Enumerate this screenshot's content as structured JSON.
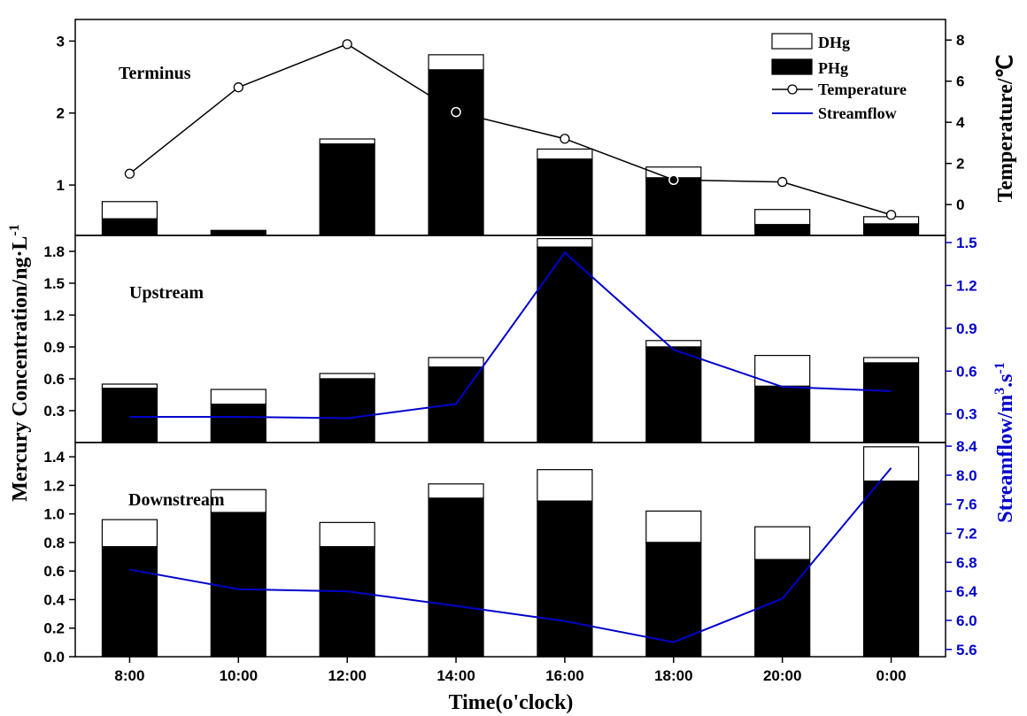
{
  "chart_data": {
    "type": "bar",
    "categories": [
      "8:00",
      "10:00",
      "12:00",
      "14:00",
      "16:00",
      "18:00",
      "20:00",
      "0:00"
    ],
    "xlabel": "Time(o'clock)",
    "ylabel_left": "Mercury Concentration/ng·L",
    "ylabel_left_sup": "-1",
    "legend": {
      "dhg": "DHg",
      "phg": "PHg",
      "temperature": "Temperature",
      "streamflow": "Streamflow",
      "position": "top-right"
    },
    "colors": {
      "phg": "#000000",
      "dhg": "#ffffff",
      "temperature": "#000000",
      "streamflow": "#0000cc",
      "axis": "#000000"
    },
    "panels": [
      {
        "label": "Terminus",
        "ylim": [
          0.3,
          3.3
        ],
        "yticks": [
          1,
          2,
          3
        ],
        "phg": [
          0.53,
          0.37,
          1.57,
          2.6,
          1.36,
          1.1,
          0.45,
          0.46
        ],
        "total": [
          0.77,
          0.37,
          1.64,
          2.81,
          1.5,
          1.25,
          0.66,
          0.56
        ],
        "right_axis": {
          "label": "Temperature/℃",
          "ylim": [
            -1.5,
            9.0
          ],
          "yticks": [
            0,
            2,
            4,
            6,
            8
          ],
          "series_key": "temperature",
          "values": [
            1.5,
            5.7,
            7.8,
            4.5,
            3.2,
            1.2,
            1.1,
            -0.5
          ],
          "markers": [
            "open",
            "open",
            "open",
            "filled",
            "open",
            "filled",
            "open",
            "open"
          ]
        }
      },
      {
        "label": "Upstream",
        "ylim": [
          0.0,
          1.95
        ],
        "yticks": [
          0.3,
          0.6,
          0.9,
          1.2,
          1.5,
          1.8
        ],
        "phg": [
          0.51,
          0.36,
          0.6,
          0.71,
          1.84,
          0.9,
          0.53,
          0.75
        ],
        "total": [
          0.55,
          0.5,
          0.65,
          0.8,
          1.92,
          0.96,
          0.82,
          0.8
        ],
        "right_axis": {
          "label": "Streamflow/m",
          "label_sup": "3",
          "label_mid": ".s",
          "label_sup2": "-1",
          "ylim": [
            0.1,
            1.55
          ],
          "yticks": [
            0.3,
            0.6,
            0.9,
            1.2,
            1.5
          ],
          "series_key": "streamflow",
          "values": [
            0.28,
            0.28,
            0.27,
            0.37,
            1.43,
            0.75,
            0.49,
            0.46
          ]
        }
      },
      {
        "label": "Downstream",
        "ylim": [
          0.0,
          1.5
        ],
        "yticks": [
          0.0,
          0.2,
          0.4,
          0.6,
          0.8,
          1.0,
          1.2,
          1.4
        ],
        "phg": [
          0.77,
          1.01,
          0.77,
          1.11,
          1.09,
          0.8,
          0.68,
          1.23
        ],
        "total": [
          0.96,
          1.17,
          0.94,
          1.21,
          1.31,
          1.02,
          0.91,
          1.47
        ],
        "right_axis": {
          "ylim": [
            5.5,
            8.45
          ],
          "yticks": [
            5.6,
            6.0,
            6.4,
            6.8,
            7.2,
            7.6,
            8.0,
            8.4
          ],
          "series_key": "streamflow",
          "values": [
            6.7,
            6.43,
            6.4,
            6.2,
            5.99,
            5.7,
            6.3,
            8.1
          ]
        }
      }
    ]
  }
}
